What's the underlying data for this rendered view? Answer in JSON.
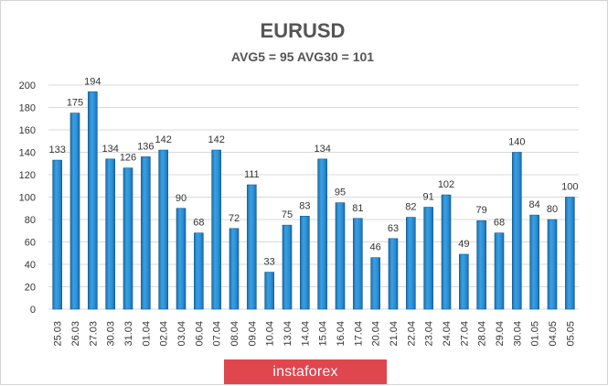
{
  "chart_data": {
    "type": "bar",
    "title": "EURUSD",
    "subtitle": "AVG5 = 95 AVG30 = 101",
    "categories": [
      "25.03",
      "26.03",
      "27.03",
      "30.03",
      "31.03",
      "01.04",
      "02.04",
      "03.04",
      "06.04",
      "07.04",
      "08.04",
      "09.04",
      "10.04",
      "13.04",
      "14.04",
      "15.04",
      "16.04",
      "17.04",
      "20.04",
      "21.04",
      "22.04",
      "23.04",
      "24.04",
      "27.04",
      "28.04",
      "29.04",
      "30.04",
      "01.05",
      "04.05",
      "05.05"
    ],
    "values": [
      133,
      175,
      194,
      134,
      126,
      136,
      142,
      90,
      68,
      142,
      72,
      111,
      33,
      75,
      83,
      134,
      95,
      81,
      46,
      63,
      82,
      91,
      102,
      49,
      79,
      68,
      140,
      84,
      80,
      100
    ],
    "ylim": [
      0,
      200
    ],
    "yticks": [
      0,
      20,
      40,
      60,
      80,
      100,
      120,
      140,
      160,
      180,
      200
    ],
    "grid": true,
    "bar_color": "#2a8ed3"
  },
  "brand": {
    "label": "instaforex",
    "color": "#e0464e"
  }
}
